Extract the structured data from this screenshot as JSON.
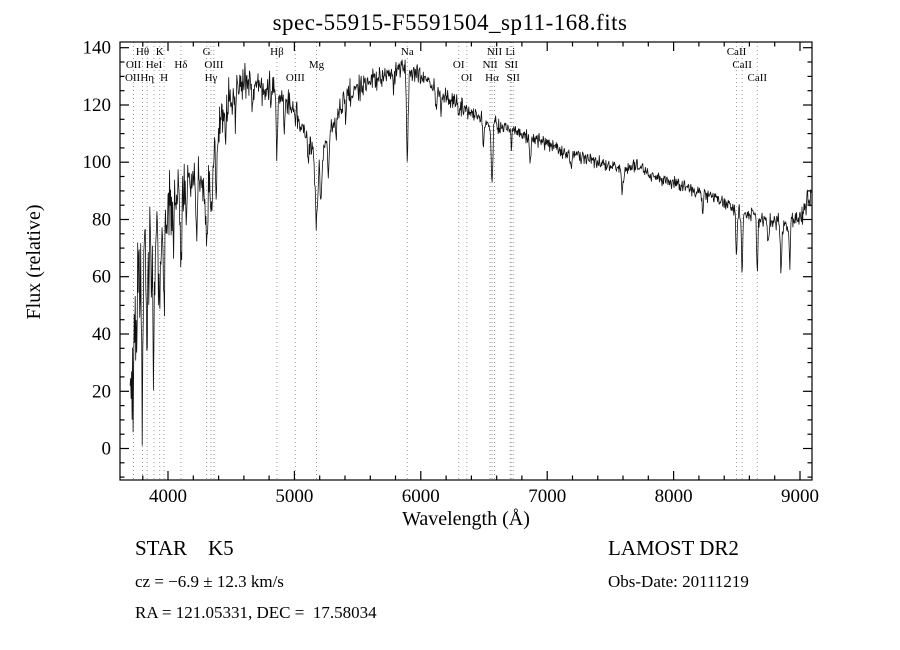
{
  "title": "spec-55915-F5591504_sp11-168.fits",
  "annotations": {
    "object_class": "STAR    K5",
    "survey": "LAMOST DR2",
    "radial_velocity": "cz = −6.9 ± 12.3 km/s",
    "obs_date": "Obs-Date: 20111219",
    "coordinates": "RA = 121.05331, DEC =  17.58034"
  },
  "colors": {
    "spectrum": "#111111",
    "marker_line": "#999999",
    "axis": "#000000",
    "background": "#ffffff"
  },
  "chart_data": {
    "type": "line",
    "title": "spec-55915-F5591504_sp11-168.fits",
    "xlabel": "Wavelength (Å)",
    "ylabel": "Flux (relative)",
    "xlim": [
      3620,
      9095
    ],
    "ylim": [
      -11,
      142
    ],
    "xticks": [
      4000,
      5000,
      6000,
      7000,
      8000,
      9000
    ],
    "yticks": [
      0,
      20,
      40,
      60,
      80,
      100,
      120,
      140
    ],
    "x_minor_step": 200,
    "y_minor_step": 5,
    "grid": false,
    "legend": false,
    "x_start": 3700,
    "x_end": 9088,
    "step": 4,
    "seed": 20111219,
    "continuum": [
      [
        3700,
        24
      ],
      [
        3720,
        40
      ],
      [
        3760,
        55
      ],
      [
        3800,
        62
      ],
      [
        3850,
        68
      ],
      [
        3900,
        72
      ],
      [
        3950,
        78
      ],
      [
        4000,
        84
      ],
      [
        4060,
        88
      ],
      [
        4120,
        91
      ],
      [
        4180,
        95
      ],
      [
        4240,
        95
      ],
      [
        4300,
        94
      ],
      [
        4360,
        101
      ],
      [
        4420,
        114
      ],
      [
        4480,
        122
      ],
      [
        4540,
        126
      ],
      [
        4600,
        128
      ],
      [
        4700,
        127
      ],
      [
        4800,
        126
      ],
      [
        4860,
        124
      ],
      [
        4920,
        122
      ],
      [
        4980,
        119
      ],
      [
        5040,
        114
      ],
      [
        5100,
        110
      ],
      [
        5160,
        105
      ],
      [
        5220,
        104
      ],
      [
        5280,
        111
      ],
      [
        5340,
        118
      ],
      [
        5400,
        122
      ],
      [
        5460,
        125
      ],
      [
        5520,
        126
      ],
      [
        5600,
        128
      ],
      [
        5700,
        130
      ],
      [
        5800,
        132
      ],
      [
        5880,
        133
      ],
      [
        5960,
        131
      ],
      [
        6040,
        129
      ],
      [
        6120,
        126
      ],
      [
        6200,
        123
      ],
      [
        6280,
        121
      ],
      [
        6360,
        118
      ],
      [
        6440,
        116
      ],
      [
        6520,
        114
      ],
      [
        6600,
        113
      ],
      [
        6700,
        112
      ],
      [
        6800,
        110
      ],
      [
        6900,
        108
      ],
      [
        7000,
        106
      ],
      [
        7100,
        104
      ],
      [
        7200,
        103
      ],
      [
        7300,
        101
      ],
      [
        7400,
        100
      ],
      [
        7500,
        99
      ],
      [
        7620,
        98
      ],
      [
        7700,
        99
      ],
      [
        7800,
        96
      ],
      [
        7900,
        94
      ],
      [
        8000,
        93
      ],
      [
        8100,
        91
      ],
      [
        8200,
        90
      ],
      [
        8300,
        88
      ],
      [
        8400,
        86
      ],
      [
        8500,
        83
      ],
      [
        8600,
        81
      ],
      [
        8700,
        80
      ],
      [
        8800,
        79
      ],
      [
        8900,
        78
      ],
      [
        9000,
        80
      ],
      [
        9050,
        85
      ],
      [
        9088,
        91
      ]
    ],
    "absorption_lines": [
      [
        3727,
        18,
        6
      ],
      [
        3750,
        22,
        5
      ],
      [
        3798,
        24,
        5
      ],
      [
        3835,
        26,
        5
      ],
      [
        3889,
        24,
        5
      ],
      [
        3934,
        34,
        6
      ],
      [
        3969,
        34,
        6
      ],
      [
        4045,
        14,
        4
      ],
      [
        4102,
        26,
        6
      ],
      [
        4144,
        12,
        4
      ],
      [
        4227,
        18,
        5
      ],
      [
        4305,
        22,
        9
      ],
      [
        4340,
        18,
        6
      ],
      [
        4383,
        16,
        5
      ],
      [
        4455,
        12,
        4
      ],
      [
        4531,
        10,
        4
      ],
      [
        4668,
        10,
        4
      ],
      [
        4861,
        18,
        6
      ],
      [
        4920,
        10,
        4
      ],
      [
        5007,
        6,
        4
      ],
      [
        5110,
        8,
        5
      ],
      [
        5175,
        26,
        12
      ],
      [
        5210,
        18,
        7
      ],
      [
        5270,
        14,
        6
      ],
      [
        5330,
        8,
        5
      ],
      [
        5406,
        8,
        4
      ],
      [
        5782,
        6,
        4
      ],
      [
        5893,
        30,
        7
      ],
      [
        6122,
        10,
        5
      ],
      [
        6162,
        8,
        4
      ],
      [
        6300,
        6,
        4
      ],
      [
        6495,
        8,
        5
      ],
      [
        6563,
        22,
        6
      ],
      [
        6717,
        6,
        4
      ],
      [
        6867,
        8,
        6
      ],
      [
        7190,
        5,
        6
      ],
      [
        7594,
        9,
        8
      ],
      [
        8230,
        6,
        6
      ],
      [
        8498,
        16,
        5
      ],
      [
        8542,
        20,
        5
      ],
      [
        8662,
        18,
        5
      ],
      [
        8750,
        8,
        5
      ],
      [
        8850,
        16,
        6
      ],
      [
        8920,
        13,
        5
      ]
    ],
    "noise_envelope": [
      [
        3700,
        30
      ],
      [
        3780,
        28
      ],
      [
        3860,
        26
      ],
      [
        3940,
        22
      ],
      [
        4000,
        15
      ],
      [
        4100,
        12
      ],
      [
        4200,
        11
      ],
      [
        4300,
        10
      ],
      [
        4450,
        9
      ],
      [
        4650,
        8
      ],
      [
        4850,
        7
      ],
      [
        5050,
        6.5
      ],
      [
        5250,
        6
      ],
      [
        5500,
        5.5
      ],
      [
        5800,
        5
      ],
      [
        6000,
        4.5
      ],
      [
        6300,
        4
      ],
      [
        6600,
        3.5
      ],
      [
        7000,
        3
      ],
      [
        7500,
        2.8
      ],
      [
        8000,
        2.8
      ],
      [
        8400,
        3
      ],
      [
        8650,
        3.5
      ],
      [
        8850,
        4.5
      ],
      [
        9000,
        5
      ],
      [
        9088,
        6
      ]
    ],
    "line_markers": [
      3727,
      3798,
      3835,
      3889,
      3934,
      3969,
      4102,
      4305,
      4340,
      4363,
      4861,
      5007,
      5175,
      5893,
      6300,
      6364,
      6548,
      6563,
      6583,
      6708,
      6716,
      6731,
      8498,
      8542,
      8662
    ],
    "marker_labels": [
      {
        "text": "Hθ",
        "wl": 3798,
        "row": 1
      },
      {
        "text": "K",
        "wl": 3934,
        "row": 1
      },
      {
        "text": "G",
        "wl": 4305,
        "row": 1
      },
      {
        "text": "Hβ",
        "wl": 4861,
        "row": 1
      },
      {
        "text": "Na",
        "wl": 5893,
        "row": 1
      },
      {
        "text": "NII",
        "wl": 6583,
        "row": 1
      },
      {
        "text": "Li",
        "wl": 6708,
        "row": 1
      },
      {
        "text": "CaII",
        "wl": 8498,
        "row": 1
      },
      {
        "text": "OII",
        "wl": 3727,
        "row": 2
      },
      {
        "text": "HeI",
        "wl": 3889,
        "row": 2
      },
      {
        "text": "Hδ",
        "wl": 4102,
        "row": 2
      },
      {
        "text": "OIII",
        "wl": 4363,
        "row": 2
      },
      {
        "text": "Mg",
        "wl": 5175,
        "row": 2
      },
      {
        "text": "OI",
        "wl": 6300,
        "row": 2
      },
      {
        "text": "NII",
        "wl": 6548,
        "row": 2
      },
      {
        "text": "SII",
        "wl": 6716,
        "row": 2
      },
      {
        "text": "CaII",
        "wl": 8542,
        "row": 2
      },
      {
        "text": "OII",
        "wl": 3720,
        "row": 3
      },
      {
        "text": "Hη",
        "wl": 3835,
        "row": 3
      },
      {
        "text": "H",
        "wl": 3969,
        "row": 3
      },
      {
        "text": "Hγ",
        "wl": 4340,
        "row": 3
      },
      {
        "text": "OIII",
        "wl": 5007,
        "row": 3
      },
      {
        "text": "OI",
        "wl": 6364,
        "row": 3
      },
      {
        "text": "Hα",
        "wl": 6563,
        "row": 3
      },
      {
        "text": "SII",
        "wl": 6731,
        "row": 3
      },
      {
        "text": "CaII",
        "wl": 8662,
        "row": 3
      }
    ]
  }
}
